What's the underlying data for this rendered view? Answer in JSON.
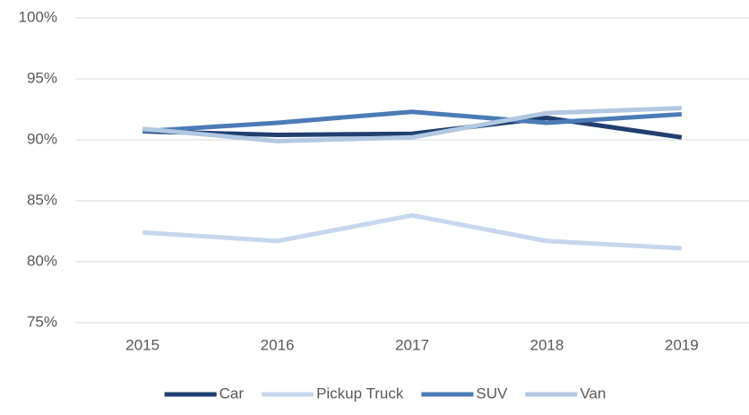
{
  "chart_data": {
    "type": "line",
    "categories": [
      "2015",
      "2016",
      "2017",
      "2018",
      "2019"
    ],
    "series": [
      {
        "name": "Car",
        "color": "#203f6f",
        "values": [
          90.7,
          90.4,
          90.5,
          91.8,
          90.2
        ]
      },
      {
        "name": "Pickup Truck",
        "color": "#c5d7ee",
        "values": [
          82.4,
          81.7,
          83.8,
          81.7,
          81.1
        ]
      },
      {
        "name": "SUV",
        "color": "#4b7bb6",
        "values": [
          90.7,
          91.4,
          92.3,
          91.4,
          92.1
        ]
      },
      {
        "name": "Van",
        "color": "#b2c7e1",
        "values": [
          90.9,
          89.9,
          90.2,
          92.2,
          92.6
        ]
      }
    ],
    "ylim": [
      75,
      100
    ],
    "yticks": [
      {
        "value": 75,
        "label": "75%"
      },
      {
        "value": 80,
        "label": "80%"
      },
      {
        "value": 85,
        "label": "85%"
      },
      {
        "value": 90,
        "label": "90%"
      },
      {
        "value": 95,
        "label": "95%"
      },
      {
        "value": 100,
        "label": "100%"
      }
    ],
    "grid": true,
    "legend": "bottom"
  }
}
